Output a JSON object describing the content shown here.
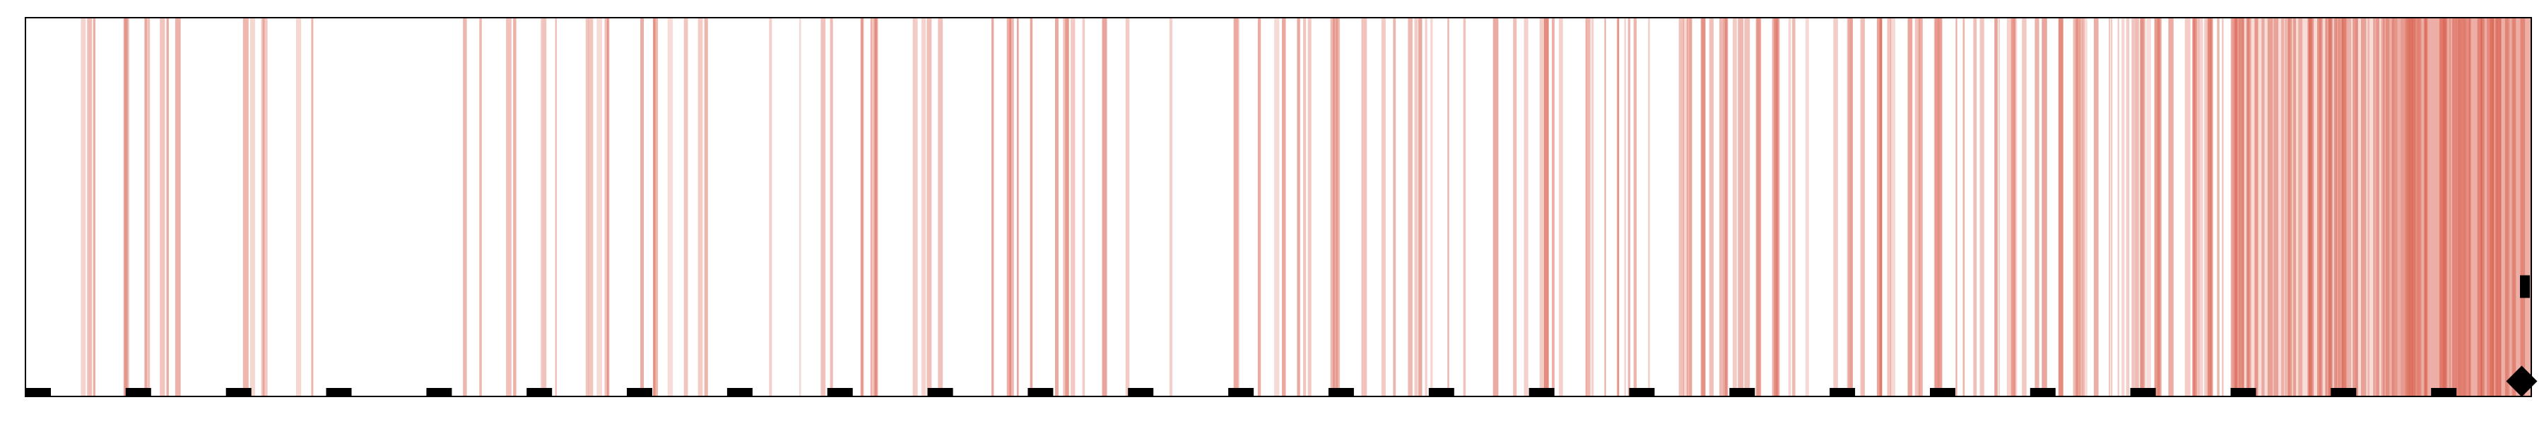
{
  "chart_data": {
    "type": "barcode",
    "title": "",
    "xlabel": "",
    "ylabel": "",
    "xlim": [
      0,
      1
    ],
    "ylim": [
      0,
      1
    ],
    "bar_color": "#d9614f",
    "marker_color": "#000000",
    "frame_color": "#000000",
    "background": "#ffffff",
    "grid": false,
    "legend": "none",
    "ticks": [
      0,
      0.04,
      0.08,
      0.12,
      0.16,
      0.2,
      0.24,
      0.28,
      0.32,
      0.36,
      0.4,
      0.44,
      0.48,
      0.52,
      0.56,
      0.6,
      0.64,
      0.68,
      0.72,
      0.76,
      0.8,
      0.84,
      0.88,
      0.92,
      0.96
    ],
    "end_markers": [
      {
        "shape": "diamond",
        "x": 0.999,
        "y": 0.04
      },
      {
        "shape": "square",
        "x": 1.0,
        "y": 0.29
      }
    ],
    "stripe_segments": [
      {
        "x0": 0.0,
        "x1": 0.13,
        "density": 0.11
      },
      {
        "x0": 0.13,
        "x1": 0.16,
        "density": 0.0
      },
      {
        "x0": 0.16,
        "x1": 0.32,
        "density": 0.13
      },
      {
        "x0": 0.32,
        "x1": 0.46,
        "density": 0.16
      },
      {
        "x0": 0.46,
        "x1": 0.48,
        "density": 0.0
      },
      {
        "x0": 0.48,
        "x1": 0.55,
        "density": 0.18
      },
      {
        "x0": 0.55,
        "x1": 0.62,
        "density": 0.2
      },
      {
        "x0": 0.62,
        "x1": 0.72,
        "density": 0.28
      },
      {
        "x0": 0.72,
        "x1": 0.81,
        "density": 0.34
      },
      {
        "x0": 0.81,
        "x1": 0.88,
        "density": 0.48
      },
      {
        "x0": 0.88,
        "x1": 0.94,
        "density": 0.64
      },
      {
        "x0": 0.94,
        "x1": 1.0,
        "density": 0.82
      }
    ]
  }
}
